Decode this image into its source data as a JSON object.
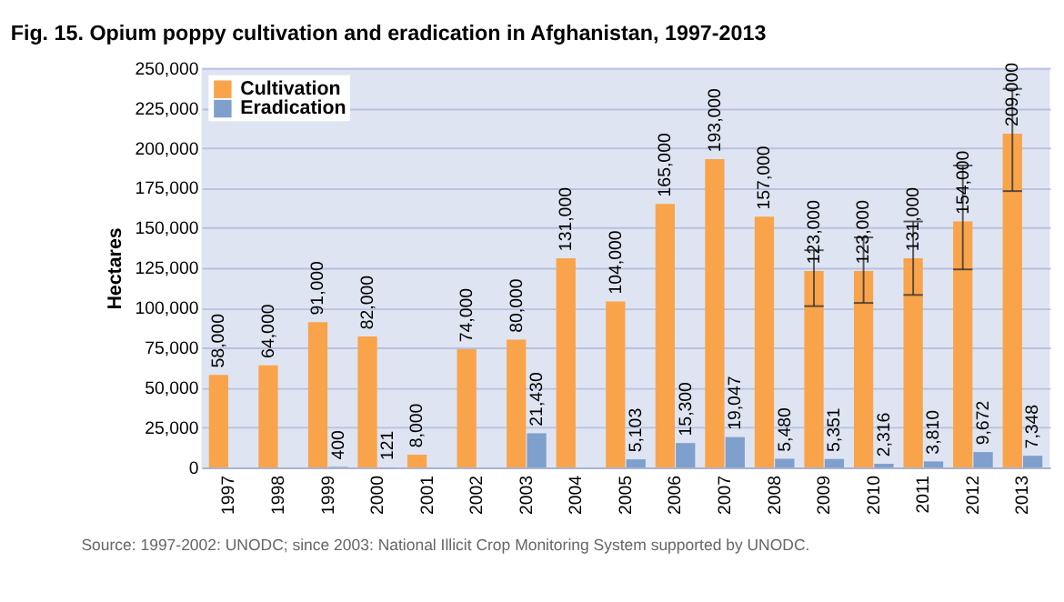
{
  "chart_data": {
    "type": "bar",
    "title": "Fig. 15.  Opium poppy cultivation and eradication in Afghanistan, 1997-2013",
    "ylabel": "Hectares",
    "categories": [
      "1997",
      "1998",
      "1999",
      "2000",
      "2001",
      "2002",
      "2003",
      "2004",
      "2005",
      "2006",
      "2007",
      "2008",
      "2009",
      "2010",
      "2011",
      "2012",
      "2013"
    ],
    "series": [
      {
        "name": "Cultivation",
        "color": "#f9a44a",
        "values": [
          58000,
          64000,
          91000,
          82000,
          8000,
          74000,
          80000,
          131000,
          104000,
          165000,
          193000,
          157000,
          123000,
          123000,
          131000,
          154000,
          209000
        ],
        "value_labels": [
          "58,000",
          "64,000",
          "91,000",
          "82,000",
          "8,000",
          "74,000",
          "80,000",
          "131,000",
          "104,000",
          "165,000",
          "193,000",
          "157,000",
          "123,000",
          "123,000",
          "131,000",
          "154,000",
          "209,000"
        ],
        "errors": [
          null,
          null,
          null,
          null,
          null,
          null,
          null,
          null,
          null,
          null,
          null,
          null,
          [
            101000,
            136000
          ],
          [
            103000,
            144000
          ],
          [
            108000,
            154000
          ],
          [
            124000,
            189000
          ],
          [
            173000,
            237000
          ]
        ]
      },
      {
        "name": "Eradication",
        "color": "#7f9fcc",
        "values": [
          null,
          null,
          400,
          121,
          null,
          null,
          21430,
          null,
          5103,
          15300,
          19047,
          5480,
          5351,
          2316,
          3810,
          9672,
          7348
        ],
        "value_labels": [
          null,
          null,
          "400",
          "121",
          null,
          null,
          "21,430",
          null,
          "5,103",
          "15,300",
          "19,047",
          "5,480",
          "5,351",
          "2,316",
          "3,810",
          "9,672",
          "7,348"
        ]
      }
    ],
    "ylim": [
      0,
      250000
    ],
    "yticks": [
      {
        "value": 0,
        "label": "0"
      },
      {
        "value": 25000,
        "label": "25,000"
      },
      {
        "value": 50000,
        "label": "50,000"
      },
      {
        "value": 75000,
        "label": "75,000"
      },
      {
        "value": 100000,
        "label": "100,000"
      },
      {
        "value": 125000,
        "label": "125,000"
      },
      {
        "value": 150000,
        "label": "150,000"
      },
      {
        "value": 175000,
        "label": "175,000"
      },
      {
        "value": 200000,
        "label": "200,000"
      },
      {
        "value": 225000,
        "label": "225,000"
      },
      {
        "value": 250000,
        "label": "250,000"
      }
    ],
    "grid": "y",
    "legend": "top left",
    "annotations": [
      "Source: 1997-2002: UNODC; since 2003: National Illicit Crop Monitoring System supported by UNODC."
    ]
  }
}
